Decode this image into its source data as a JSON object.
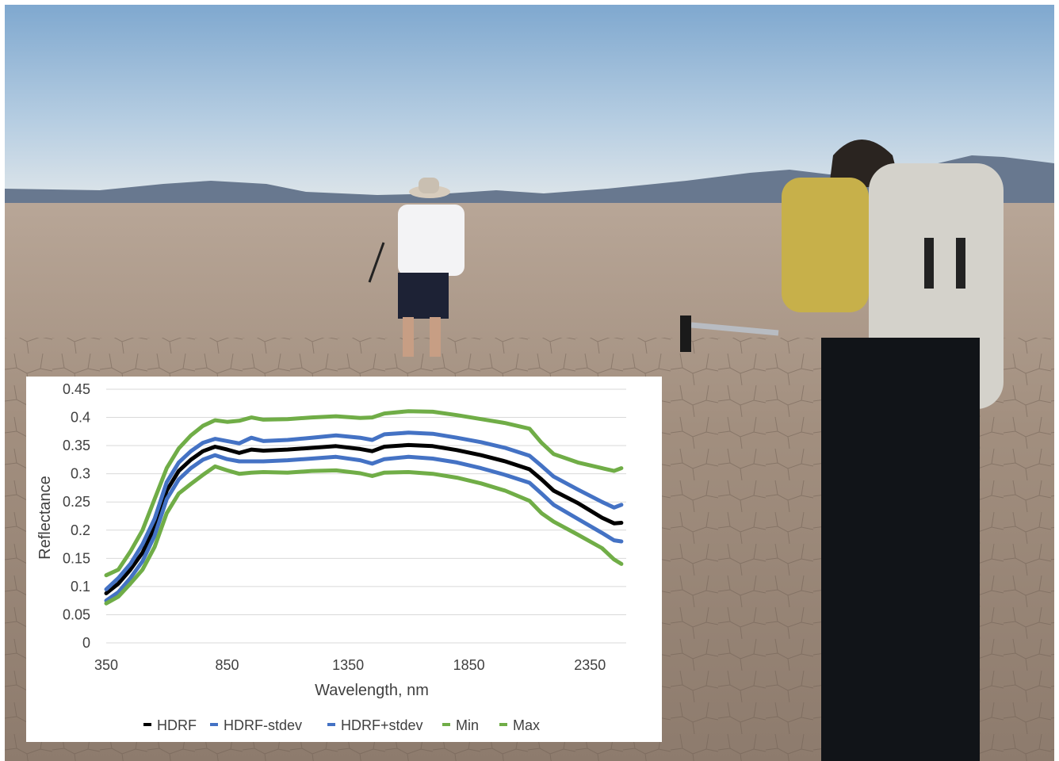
{
  "photo": {
    "scene": "dry lake bed field measurement",
    "colors": {
      "sky_top": "#7fa8cf",
      "sky_bottom": "#d8e2ea",
      "ground": "#a08d7c"
    }
  },
  "chart_data": {
    "type": "line",
    "xlabel": "Wavelength, nm",
    "ylabel": "Reflectance",
    "xlim": [
      350,
      2500
    ],
    "ylim": [
      0,
      0.45
    ],
    "x_ticks": [
      "350",
      "850",
      "1350",
      "1850",
      "2350"
    ],
    "y_ticks": [
      "0",
      "0.05",
      "0.1",
      "0.15",
      "0.2",
      "0.25",
      "0.3",
      "0.35",
      "0.4",
      "0.45"
    ],
    "grid": "horizontal",
    "legend_position": "bottom",
    "series": [
      {
        "name": "HDRF",
        "color": "#000000",
        "points": [
          [
            350,
            0.088
          ],
          [
            400,
            0.105
          ],
          [
            450,
            0.13
          ],
          [
            500,
            0.16
          ],
          [
            550,
            0.205
          ],
          [
            600,
            0.27
          ],
          [
            650,
            0.305
          ],
          [
            700,
            0.325
          ],
          [
            750,
            0.34
          ],
          [
            800,
            0.348
          ],
          [
            850,
            0.343
          ],
          [
            900,
            0.337
          ],
          [
            950,
            0.343
          ],
          [
            1000,
            0.341
          ],
          [
            1100,
            0.343
          ],
          [
            1200,
            0.346
          ],
          [
            1300,
            0.349
          ],
          [
            1400,
            0.344
          ],
          [
            1450,
            0.34
          ],
          [
            1500,
            0.348
          ],
          [
            1600,
            0.351
          ],
          [
            1700,
            0.349
          ],
          [
            1800,
            0.342
          ],
          [
            1900,
            0.333
          ],
          [
            2000,
            0.322
          ],
          [
            2100,
            0.308
          ],
          [
            2150,
            0.29
          ],
          [
            2200,
            0.27
          ],
          [
            2300,
            0.248
          ],
          [
            2400,
            0.222
          ],
          [
            2450,
            0.212
          ],
          [
            2480,
            0.213
          ]
        ]
      },
      {
        "name": "HDRF-stdev",
        "color": "#4472c4",
        "points": [
          [
            350,
            0.075
          ],
          [
            400,
            0.09
          ],
          [
            450,
            0.115
          ],
          [
            500,
            0.145
          ],
          [
            550,
            0.19
          ],
          [
            600,
            0.255
          ],
          [
            650,
            0.29
          ],
          [
            700,
            0.31
          ],
          [
            750,
            0.325
          ],
          [
            800,
            0.333
          ],
          [
            850,
            0.326
          ],
          [
            900,
            0.322
          ],
          [
            950,
            0.322
          ],
          [
            1000,
            0.322
          ],
          [
            1100,
            0.324
          ],
          [
            1200,
            0.327
          ],
          [
            1300,
            0.33
          ],
          [
            1400,
            0.324
          ],
          [
            1450,
            0.318
          ],
          [
            1500,
            0.326
          ],
          [
            1600,
            0.33
          ],
          [
            1700,
            0.327
          ],
          [
            1800,
            0.32
          ],
          [
            1900,
            0.31
          ],
          [
            2000,
            0.298
          ],
          [
            2100,
            0.284
          ],
          [
            2150,
            0.265
          ],
          [
            2200,
            0.245
          ],
          [
            2300,
            0.22
          ],
          [
            2400,
            0.195
          ],
          [
            2450,
            0.182
          ],
          [
            2480,
            0.18
          ]
        ]
      },
      {
        "name": "HDRF+stdev",
        "color": "#4472c4",
        "points": [
          [
            350,
            0.095
          ],
          [
            400,
            0.115
          ],
          [
            450,
            0.14
          ],
          [
            500,
            0.175
          ],
          [
            550,
            0.22
          ],
          [
            600,
            0.285
          ],
          [
            650,
            0.32
          ],
          [
            700,
            0.34
          ],
          [
            750,
            0.355
          ],
          [
            800,
            0.362
          ],
          [
            850,
            0.358
          ],
          [
            900,
            0.354
          ],
          [
            950,
            0.364
          ],
          [
            1000,
            0.358
          ],
          [
            1100,
            0.36
          ],
          [
            1200,
            0.364
          ],
          [
            1300,
            0.368
          ],
          [
            1400,
            0.364
          ],
          [
            1450,
            0.36
          ],
          [
            1500,
            0.37
          ],
          [
            1600,
            0.373
          ],
          [
            1700,
            0.371
          ],
          [
            1800,
            0.364
          ],
          [
            1900,
            0.356
          ],
          [
            2000,
            0.346
          ],
          [
            2100,
            0.332
          ],
          [
            2150,
            0.314
          ],
          [
            2200,
            0.295
          ],
          [
            2300,
            0.272
          ],
          [
            2400,
            0.25
          ],
          [
            2450,
            0.24
          ],
          [
            2480,
            0.245
          ]
        ]
      },
      {
        "name": "Min",
        "color": "#70ad47",
        "points": [
          [
            350,
            0.07
          ],
          [
            400,
            0.082
          ],
          [
            450,
            0.105
          ],
          [
            500,
            0.13
          ],
          [
            550,
            0.17
          ],
          [
            600,
            0.23
          ],
          [
            650,
            0.265
          ],
          [
            700,
            0.282
          ],
          [
            750,
            0.298
          ],
          [
            800,
            0.313
          ],
          [
            850,
            0.306
          ],
          [
            900,
            0.3
          ],
          [
            950,
            0.302
          ],
          [
            1000,
            0.303
          ],
          [
            1100,
            0.302
          ],
          [
            1200,
            0.305
          ],
          [
            1300,
            0.306
          ],
          [
            1400,
            0.301
          ],
          [
            1450,
            0.296
          ],
          [
            1500,
            0.302
          ],
          [
            1600,
            0.303
          ],
          [
            1700,
            0.3
          ],
          [
            1800,
            0.293
          ],
          [
            1900,
            0.283
          ],
          [
            2000,
            0.27
          ],
          [
            2100,
            0.252
          ],
          [
            2150,
            0.23
          ],
          [
            2200,
            0.215
          ],
          [
            2300,
            0.192
          ],
          [
            2400,
            0.168
          ],
          [
            2450,
            0.148
          ],
          [
            2480,
            0.14
          ]
        ]
      },
      {
        "name": "Max",
        "color": "#70ad47",
        "points": [
          [
            350,
            0.12
          ],
          [
            400,
            0.13
          ],
          [
            450,
            0.162
          ],
          [
            500,
            0.2
          ],
          [
            550,
            0.255
          ],
          [
            600,
            0.31
          ],
          [
            650,
            0.345
          ],
          [
            700,
            0.368
          ],
          [
            750,
            0.385
          ],
          [
            800,
            0.395
          ],
          [
            850,
            0.392
          ],
          [
            900,
            0.394
          ],
          [
            950,
            0.4
          ],
          [
            1000,
            0.396
          ],
          [
            1100,
            0.397
          ],
          [
            1200,
            0.4
          ],
          [
            1300,
            0.402
          ],
          [
            1400,
            0.399
          ],
          [
            1450,
            0.4
          ],
          [
            1500,
            0.407
          ],
          [
            1600,
            0.411
          ],
          [
            1700,
            0.41
          ],
          [
            1800,
            0.404
          ],
          [
            1900,
            0.397
          ],
          [
            2000,
            0.39
          ],
          [
            2100,
            0.38
          ],
          [
            2150,
            0.355
          ],
          [
            2200,
            0.335
          ],
          [
            2300,
            0.32
          ],
          [
            2400,
            0.31
          ],
          [
            2450,
            0.305
          ],
          [
            2480,
            0.31
          ]
        ]
      }
    ]
  }
}
